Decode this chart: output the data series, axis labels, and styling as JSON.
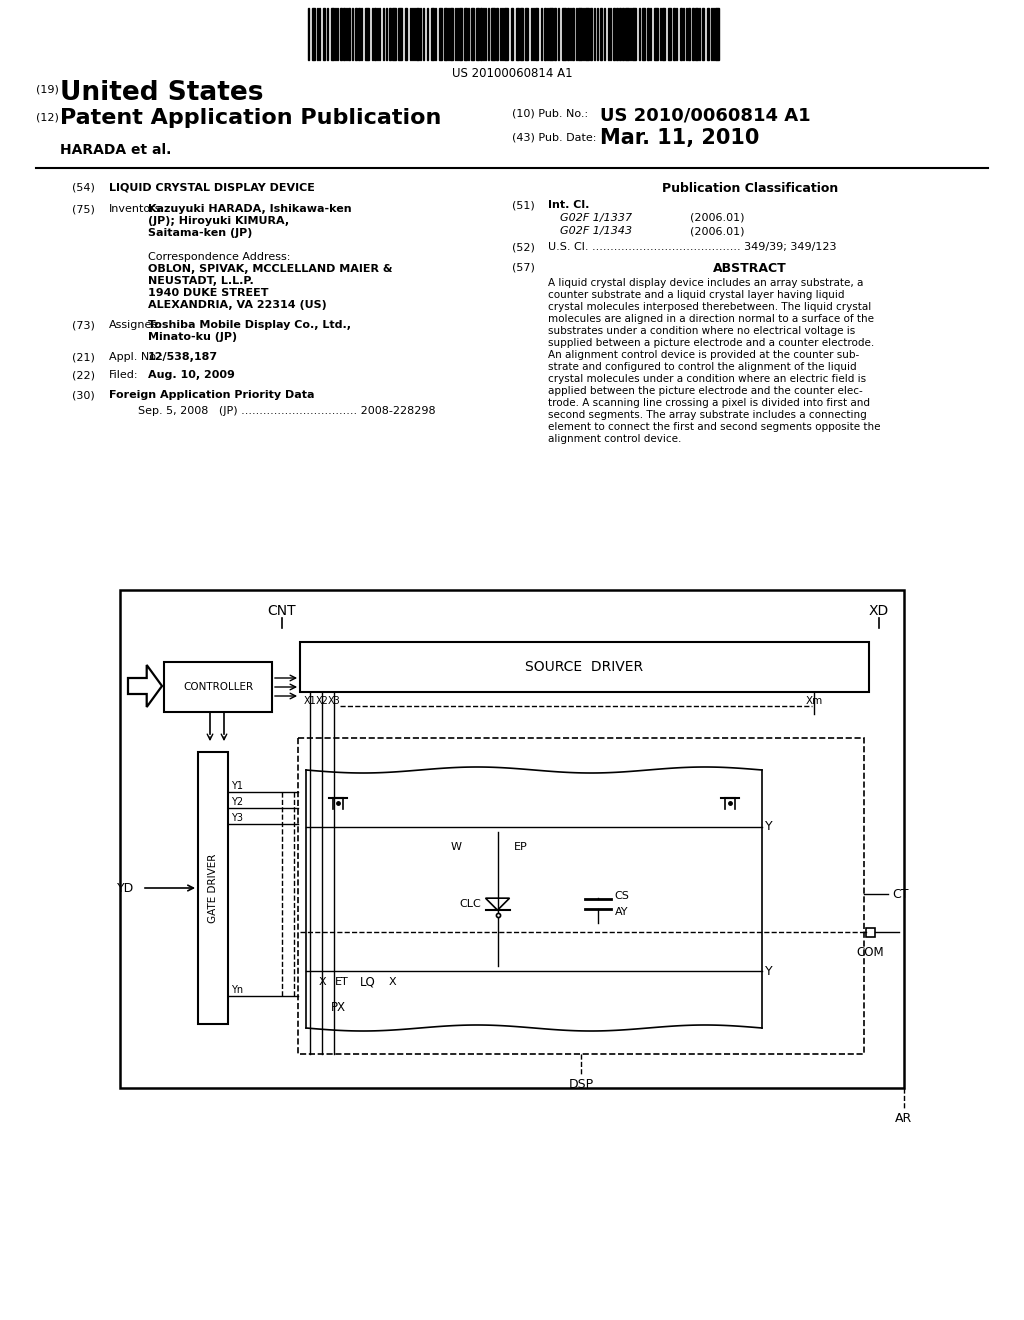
{
  "bg_color": "#ffffff",
  "barcode_text": "US 20100060814 A1",
  "country": "United States",
  "patent_type": "Patent Application Publication",
  "pub_no_label": "(10) Pub. No.:",
  "pub_no": "US 2010/0060814 A1",
  "pub_date_label": "(43) Pub. Date:",
  "pub_date": "Mar. 11, 2010",
  "inventors_line": "HARADA et al.",
  "s54_label": "(54)",
  "s54": "LIQUID CRYSTAL DISPLAY DEVICE",
  "s75_label": "(75)",
  "s75_title": "Inventors:",
  "s75_line1": "Kazuyuki HARADA, Ishikawa-ken",
  "s75_line2": "(JP); Hiroyuki KIMURA,",
  "s75_line3": "Saitama-ken (JP)",
  "corr_title": "Correspondence Address:",
  "corr_line1": "OBLON, SPIVAK, MCCLELLAND MAIER &",
  "corr_line2": "NEUSTADT, L.L.P.",
  "corr_line3": "1940 DUKE STREET",
  "corr_line4": "ALEXANDRIA, VA 22314 (US)",
  "s73_label": "(73)",
  "s73_title": "Assignee:",
  "s73_line1": "Toshiba Mobile Display Co., Ltd.,",
  "s73_line2": "Minato-ku (JP)",
  "s21_label": "(21)",
  "s21_title": "Appl. No.:",
  "s21": "12/538,187",
  "s22_label": "(22)",
  "s22_title": "Filed:",
  "s22": "Aug. 10, 2009",
  "s30_label": "(30)",
  "s30": "Foreign Application Priority Data",
  "s30_data": "Sep. 5, 2008   (JP) ................................ 2008-228298",
  "pub_class_title": "Publication Classification",
  "s51_label": "(51)",
  "s51_title": "Int. Cl.",
  "s51_class1": "G02F 1/1337",
  "s51_year1": "(2006.01)",
  "s51_class2": "G02F 1/1343",
  "s51_year2": "(2006.01)",
  "s52_label": "(52)",
  "s52": "U.S. Cl. ......................................... 349/39; 349/123",
  "s57_label": "(57)",
  "s57_title": "ABSTRACT",
  "abstract_lines": [
    "A liquid crystal display device includes an array substrate, a",
    "counter substrate and a liquid crystal layer having liquid",
    "crystal molecules interposed therebetween. The liquid crystal",
    "molecules are aligned in a direction normal to a surface of the",
    "substrates under a condition where no electrical voltage is",
    "supplied between a picture electrode and a counter electrode.",
    "An alignment control device is provided at the counter sub-",
    "strate and configured to control the alignment of the liquid",
    "crystal molecules under a condition where an electric field is",
    "applied between the picture electrode and the counter elec-",
    "trode. A scanning line crossing a pixel is divided into first and",
    "second segments. The array substrate includes a connecting",
    "element to connect the first and second segments opposite the",
    "alignment control device."
  ]
}
